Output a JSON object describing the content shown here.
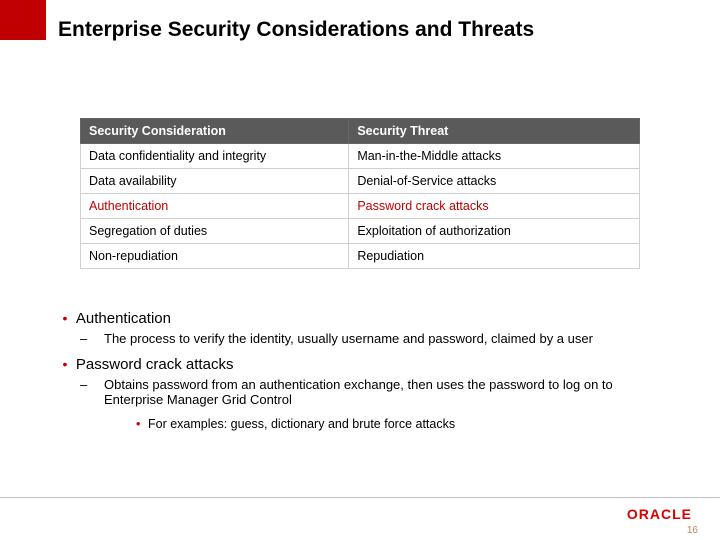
{
  "colors": {
    "red_block": "#c00000",
    "table_header_bg": "#5a5a5a",
    "table_header_text": "#ffffff",
    "row_border": "#d0d0d0",
    "highlight_text": "#c00000",
    "bullet_dot": "#c00000",
    "logo_color": "#d90000",
    "pagenum_color": "#b38a5a"
  },
  "title": "Enterprise Security Considerations and Threats",
  "table": {
    "columns": [
      "Security Consideration",
      "Security Threat"
    ],
    "col_widths_pct": [
      48,
      52
    ],
    "rows": [
      {
        "cells": [
          "Data confidentiality and integrity",
          "Man-in-the-Middle attacks"
        ],
        "highlight": false
      },
      {
        "cells": [
          "Data availability",
          "Denial-of-Service attacks"
        ],
        "highlight": false
      },
      {
        "cells": [
          "Authentication",
          "Password crack attacks"
        ],
        "highlight": true
      },
      {
        "cells": [
          "Segregation of duties",
          "Exploitation of authorization"
        ],
        "highlight": false
      },
      {
        "cells": [
          "Non-repudiation",
          "Repudiation"
        ],
        "highlight": false
      }
    ]
  },
  "bullets": [
    {
      "text": "Authentication",
      "sub": [
        {
          "text": "The process to verify the identity, usually username and password, claimed by a user"
        }
      ]
    },
    {
      "text": "Password crack attacks",
      "sub": [
        {
          "text": "Obtains password from an authentication exchange, then uses the password to log on to Enterprise Manager Grid Control",
          "sub": [
            {
              "text": "For examples: guess, dictionary and brute force attacks"
            }
          ]
        }
      ]
    }
  ],
  "logo_text": "ORACLE",
  "page_number": "16"
}
